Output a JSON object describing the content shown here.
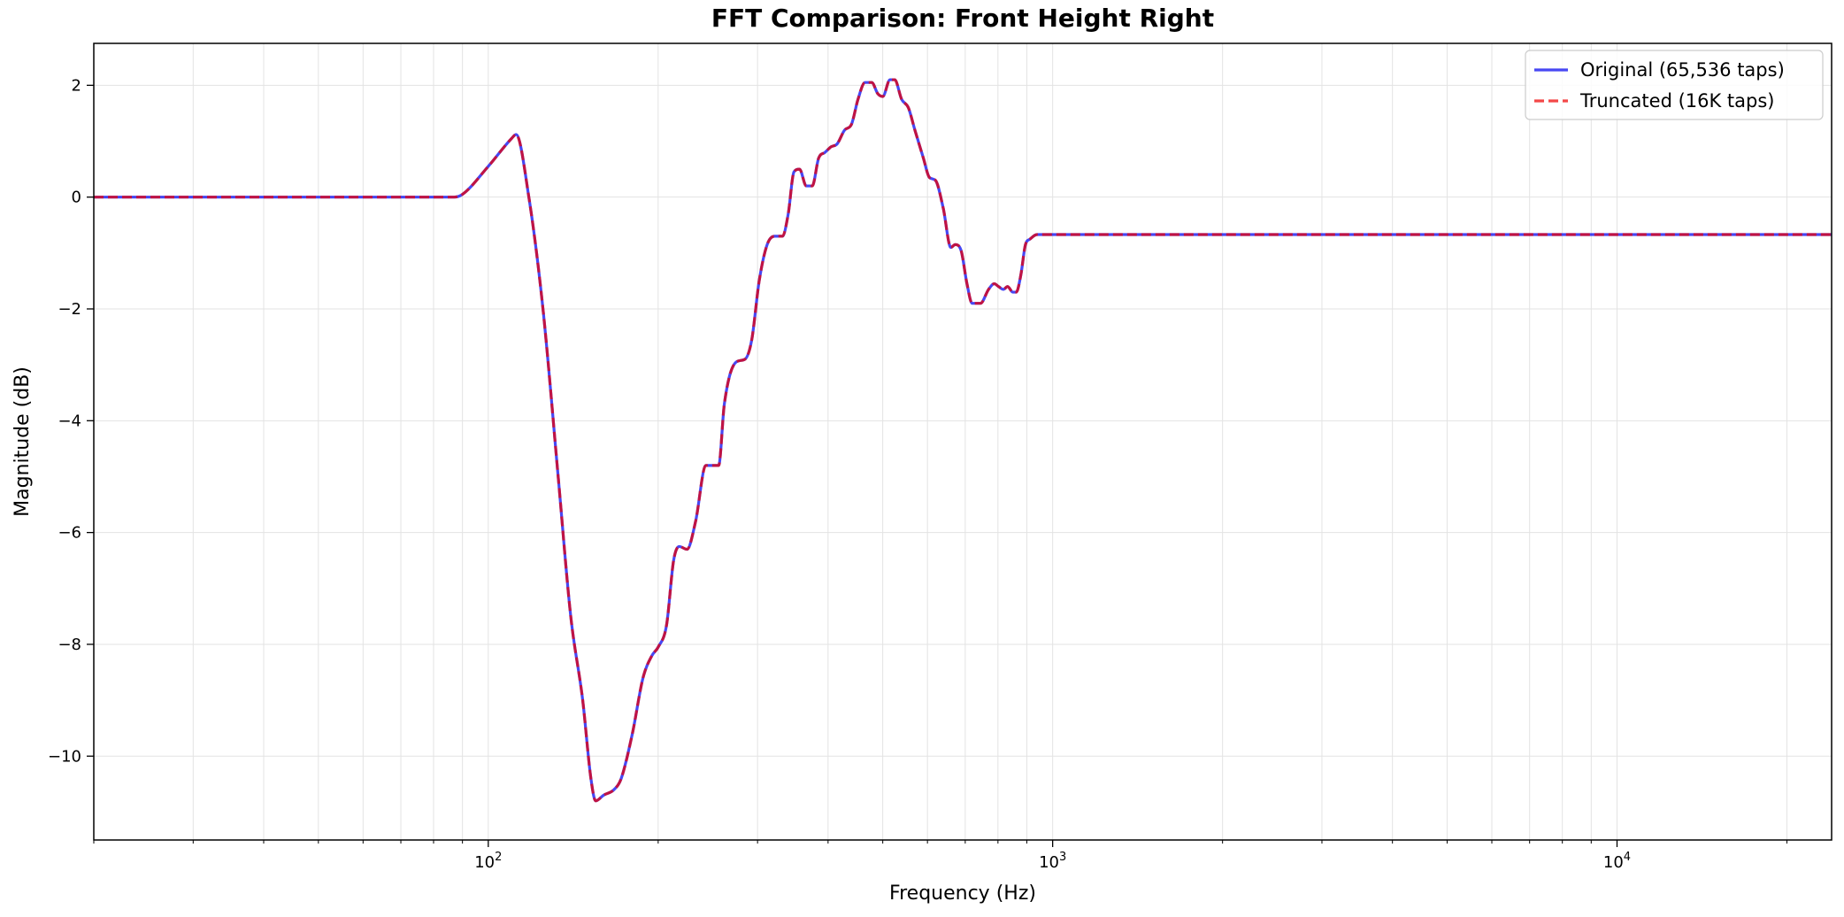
{
  "chart_data": {
    "type": "line",
    "title": "FFT Comparison: Front Height Right",
    "xlabel": "Frequency (Hz)",
    "ylabel": "Magnitude (dB)",
    "x_scale": "log",
    "xlim": [
      20,
      24000
    ],
    "ylim": [
      -11.5,
      2.75
    ],
    "grid": true,
    "legend_position": "top-right",
    "x_ticks": [
      {
        "value": 100,
        "base": "10",
        "exp": "2"
      },
      {
        "value": 1000,
        "base": "10",
        "exp": "3"
      },
      {
        "value": 10000,
        "base": "10",
        "exp": "4"
      }
    ],
    "y_ticks": [
      {
        "value": 2,
        "label": "2"
      },
      {
        "value": 0,
        "label": "0"
      },
      {
        "value": -2,
        "label": "−2"
      },
      {
        "value": -4,
        "label": "−4"
      },
      {
        "value": -6,
        "label": "−6"
      },
      {
        "value": -8,
        "label": "−8"
      },
      {
        "value": -10,
        "label": "−10"
      }
    ],
    "x": [
      20,
      50,
      87,
      90,
      100,
      110,
      112,
      118,
      125,
      133,
      140,
      147,
      152,
      155,
      160,
      167,
      172,
      180,
      188,
      195,
      200,
      207,
      213,
      218,
      225,
      233,
      243,
      250,
      256,
      262,
      275,
      285,
      293,
      302,
      312,
      322,
      332,
      340,
      348,
      356,
      366,
      375,
      385,
      395,
      405,
      415,
      428,
      440,
      452,
      465,
      478,
      490,
      500,
      515,
      525,
      540,
      555,
      570,
      590,
      605,
      620,
      640,
      660,
      672,
      688,
      705,
      720,
      745,
      770,
      788,
      802,
      818,
      832,
      850,
      862,
      878,
      895,
      912,
      938,
      960,
      985,
      1000,
      5000,
      24000
    ],
    "series": [
      {
        "name": "Original (65,536 taps)",
        "color": "#0000ee",
        "style": "solid",
        "values": [
          0,
          0,
          0,
          0.05,
          0.55,
          1.05,
          1.12,
          0,
          -2,
          -5,
          -7.5,
          -9,
          -10.4,
          -10.8,
          -10.7,
          -10.6,
          -10.4,
          -9.6,
          -8.6,
          -8.2,
          -8.05,
          -7.65,
          -6.5,
          -6.25,
          -6.3,
          -5.8,
          -4.8,
          -4.8,
          -4.8,
          -3.7,
          -2.95,
          -2.9,
          -2.55,
          -1.5,
          -0.85,
          -0.7,
          -0.7,
          -0.3,
          0.45,
          0.5,
          0.2,
          0.2,
          0.7,
          0.8,
          0.9,
          0.95,
          1.2,
          1.3,
          1.75,
          2.05,
          2.05,
          1.85,
          1.8,
          2.1,
          2.1,
          1.75,
          1.6,
          1.2,
          0.7,
          0.35,
          0.3,
          -0.2,
          -0.9,
          -0.85,
          -0.95,
          -1.55,
          -1.9,
          -1.9,
          -1.65,
          -1.55,
          -1.6,
          -1.65,
          -1.6,
          -1.7,
          -1.7,
          -1.4,
          -0.85,
          -0.75,
          -0.67,
          -0.67,
          -0.67,
          -0.67,
          -0.67,
          -0.67
        ]
      },
      {
        "name": "Truncated (16K taps)",
        "color": "#ee0000",
        "style": "dashed",
        "values": [
          0,
          0,
          0,
          0.05,
          0.55,
          1.05,
          1.12,
          0,
          -2,
          -5,
          -7.5,
          -9,
          -10.4,
          -10.8,
          -10.7,
          -10.6,
          -10.4,
          -9.6,
          -8.6,
          -8.2,
          -8.05,
          -7.65,
          -6.5,
          -6.25,
          -6.3,
          -5.8,
          -4.8,
          -4.8,
          -4.8,
          -3.7,
          -2.95,
          -2.9,
          -2.55,
          -1.5,
          -0.85,
          -0.7,
          -0.7,
          -0.3,
          0.45,
          0.5,
          0.2,
          0.2,
          0.7,
          0.8,
          0.9,
          0.95,
          1.2,
          1.3,
          1.75,
          2.05,
          2.05,
          1.85,
          1.8,
          2.1,
          2.1,
          1.75,
          1.6,
          1.2,
          0.7,
          0.35,
          0.3,
          -0.2,
          -0.9,
          -0.85,
          -0.95,
          -1.55,
          -1.9,
          -1.9,
          -1.65,
          -1.55,
          -1.6,
          -1.65,
          -1.6,
          -1.7,
          -1.7,
          -1.4,
          -0.85,
          -0.75,
          -0.67,
          -0.67,
          -0.67,
          -0.67,
          -0.67,
          -0.67
        ]
      }
    ]
  }
}
